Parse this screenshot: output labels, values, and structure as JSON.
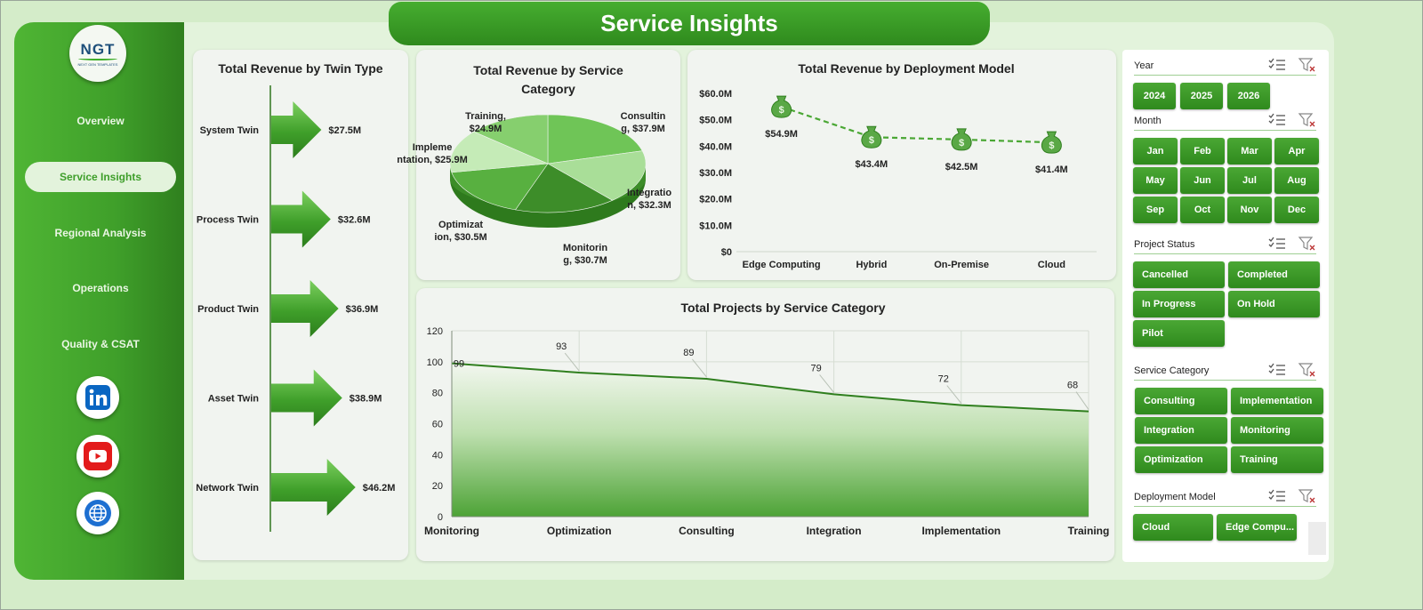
{
  "header": {
    "title": "Service Insights"
  },
  "logo": {
    "text": "NGT",
    "subtitle": "NEXT GEN TEMPLATES"
  },
  "nav": [
    {
      "label": "Overview"
    },
    {
      "label": "Service Insights",
      "active": true
    },
    {
      "label": "Regional Analysis"
    },
    {
      "label": "Operations"
    },
    {
      "label": "Quality & CSAT"
    }
  ],
  "social": [
    {
      "icon": "linkedin-icon"
    },
    {
      "icon": "youtube-icon"
    },
    {
      "icon": "globe-icon"
    }
  ],
  "colors": {
    "brand_green": "#3f9f2a",
    "dark_green": "#2f7f1e",
    "background": "#d4ecc9",
    "accent_light": "#e3f3dc"
  },
  "chart_data": [
    {
      "type": "bar",
      "title": "Total Revenue  by Twin Type",
      "categories": [
        "System Twin",
        "Process Twin",
        "Product Twin",
        "Asset Twin",
        "Network Twin"
      ],
      "values": [
        27.5,
        32.6,
        36.9,
        38.9,
        46.2
      ],
      "value_labels": [
        "$27.5M",
        "$32.6M",
        "$36.9M",
        "$38.9M",
        "$46.2M"
      ],
      "orientation": "horizontal-arrows"
    },
    {
      "type": "pie",
      "title": "Total Revenue by Service Category",
      "slices": [
        {
          "label": "Consultin g, $37.9M",
          "name": "Consulting",
          "value": 37.9,
          "color": "#6fc557"
        },
        {
          "label": "Integratio n, $32.3M",
          "name": "Integration",
          "value": 32.3,
          "color": "#a9de98"
        },
        {
          "label": "Monitorin g, $30.7M",
          "name": "Monitoring",
          "value": 30.7,
          "color": "#3d8d29"
        },
        {
          "label": "Optimizat ion, $30.5M",
          "name": "Optimization",
          "value": 30.5,
          "color": "#58b040"
        },
        {
          "label": "Impleme ntation, $25.9M",
          "name": "Implementation",
          "value": 25.9,
          "color": "#c5ebb7"
        },
        {
          "label": "Training, $24.9M",
          "name": "Training",
          "value": 24.9,
          "color": "#86cf6e"
        }
      ]
    },
    {
      "type": "line",
      "title": "Total Revenue  by Deployment Model",
      "categories": [
        "Edge Computing",
        "Hybrid",
        "On-Premise",
        "Cloud"
      ],
      "values": [
        54.9,
        43.4,
        42.5,
        41.4
      ],
      "value_labels": [
        "$54.9M",
        "$43.4M",
        "$42.5M",
        "$41.4M"
      ],
      "yticks": [
        "$0",
        "$10.0M",
        "$20.0M",
        "$30.0M",
        "$40.0M",
        "$50.0M",
        "$60.0M"
      ],
      "ylim": [
        0,
        60
      ],
      "marker": "money-bag-icon"
    },
    {
      "type": "area",
      "title": "Total Projects by Service Category",
      "categories": [
        "Monitoring",
        "Optimization",
        "Consulting",
        "Integration",
        "Implementation",
        "Training"
      ],
      "values": [
        99,
        93,
        89,
        79,
        72,
        68
      ],
      "yticks": [
        "0",
        "20",
        "40",
        "60",
        "80",
        "100",
        "120"
      ],
      "ylim": [
        0,
        120
      ],
      "grid": true
    }
  ],
  "slicers": [
    {
      "title": "Year",
      "items": [
        "2024",
        "2025",
        "2026"
      ]
    },
    {
      "title": "Month",
      "items": [
        "Jan",
        "Feb",
        "Mar",
        "Apr",
        "May",
        "Jun",
        "Jul",
        "Aug",
        "Sep",
        "Oct",
        "Nov",
        "Dec"
      ]
    },
    {
      "title": "Project Status",
      "items": [
        "Cancelled",
        "Completed",
        "In Progress",
        "On Hold",
        "Pilot"
      ]
    },
    {
      "title": "Service Category",
      "items": [
        "Consulting",
        "Implementation",
        "Integration",
        "Monitoring",
        "Optimization",
        "Training"
      ]
    },
    {
      "title": "Deployment Model",
      "items": [
        "Cloud",
        "Edge Compu..."
      ]
    }
  ]
}
